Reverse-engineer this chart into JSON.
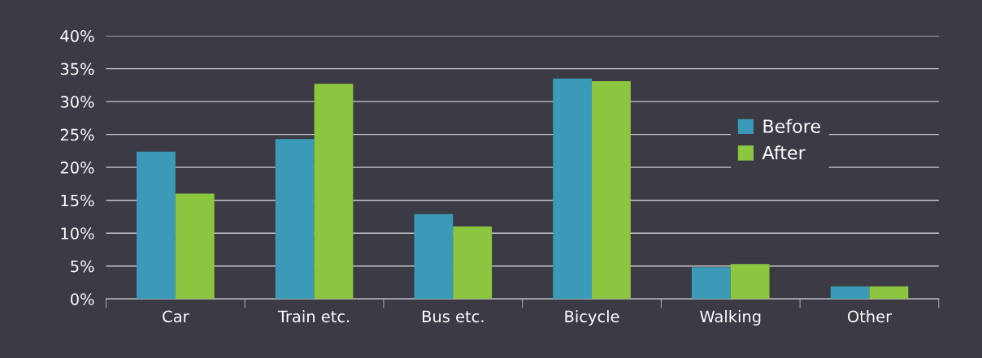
{
  "chart_data": {
    "type": "bar",
    "categories": [
      "Car",
      "Train etc.",
      "Bus etc.",
      "Bicycle",
      "Walking",
      "Other"
    ],
    "series": [
      {
        "name": "Before",
        "color": "#3a9ab8",
        "values": [
          22.4,
          24.3,
          12.9,
          33.5,
          4.8,
          1.9
        ]
      },
      {
        "name": "After",
        "color": "#8cc63f",
        "values": [
          16.0,
          32.7,
          11.0,
          33.1,
          5.3,
          1.9
        ]
      }
    ],
    "ylim": [
      0,
      40
    ],
    "yticks": [
      {
        "value": 0,
        "label": "0%"
      },
      {
        "value": 5,
        "label": "5%"
      },
      {
        "value": 10,
        "label": "10%"
      },
      {
        "value": 15,
        "label": "15%"
      },
      {
        "value": 20,
        "label": "20%"
      },
      {
        "value": 25,
        "label": "25%"
      },
      {
        "value": 30,
        "label": "30%"
      },
      {
        "value": 35,
        "label": "35%"
      },
      {
        "value": 40,
        "label": "40%"
      }
    ],
    "grid": "y",
    "legend": "right"
  }
}
